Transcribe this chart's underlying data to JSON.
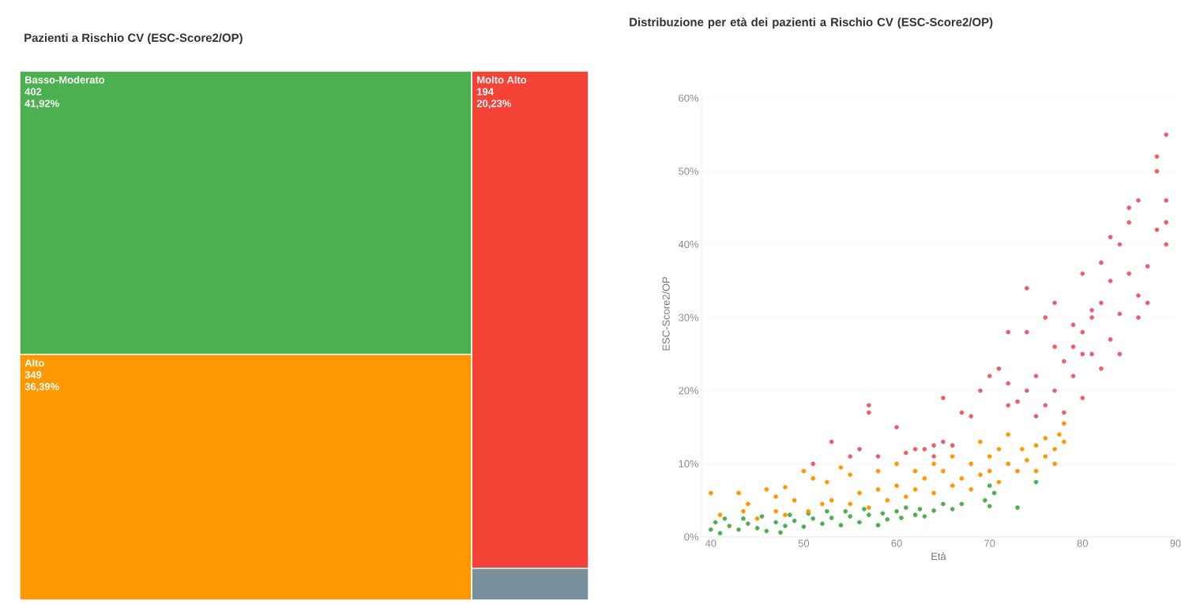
{
  "chart_data": [
    {
      "type": "other",
      "title": "Pazienti a Rischio CV (ESC-Score2/OP)",
      "categories": [
        "Basso-Moderato",
        "Alto",
        "Molto Alto",
        null
      ],
      "values": [
        402,
        349,
        194,
        null
      ],
      "colors": [
        "#4caf50",
        "#ff9800",
        "#f44336",
        "#78909c"
      ],
      "data_labels": true,
      "annotations": [
        {
          "text": "41,92%",
          "x": "Basso-Moderato"
        },
        {
          "text": "36,39%",
          "x": "Alto"
        },
        {
          "text": "20,23%",
          "x": "Molto Alto"
        }
      ]
    },
    {
      "type": "scatter",
      "title": "Distribuzione per età dei pazienti a Rischio CV (ESC-Score2/OP)",
      "xlabel": "Età",
      "ylabel": "ESC-Score2/OP",
      "xlim": [
        39,
        90
      ],
      "ylim": [
        0,
        61
      ],
      "xticks": [
        40,
        50,
        60,
        70,
        80,
        90
      ],
      "yticks": [
        {
          "value": 0,
          "label": "0%"
        },
        {
          "value": 10,
          "label": "10%"
        },
        {
          "value": 20,
          "label": "20%"
        },
        {
          "value": 30,
          "label": "30%"
        },
        {
          "value": 40,
          "label": "40%"
        },
        {
          "value": 50,
          "label": "50%"
        },
        {
          "value": 60,
          "label": "60%"
        }
      ],
      "grid": "y",
      "marker": "circle",
      "series": [
        {
          "color": "#4caf50",
          "x": [
            40,
            40.5,
            41,
            41.5,
            42,
            43,
            43.5,
            44,
            45,
            45.5,
            46,
            47,
            47.5,
            48,
            48.5,
            49,
            50,
            50.5,
            51,
            52,
            52.5,
            53,
            54,
            54.5,
            55,
            56,
            56.5,
            57,
            58,
            58.5,
            59,
            60,
            60.5,
            61,
            62,
            62.5,
            63,
            64,
            65,
            66,
            67,
            69.5,
            70,
            70.5,
            70,
            73,
            75
          ],
          "values": [
            1,
            2,
            0.5,
            2.5,
            1.5,
            1,
            2.5,
            1.8,
            1.2,
            2.8,
            0.8,
            2,
            0.6,
            1.5,
            3,
            2.2,
            1.4,
            3.2,
            2.5,
            1.8,
            3.5,
            2.6,
            1.6,
            3.5,
            2.8,
            2,
            3.8,
            3,
            1.6,
            3.2,
            2.4,
            3.5,
            2.6,
            4,
            3,
            3.8,
            2.8,
            3.6,
            4.5,
            3.8,
            4.5,
            5,
            7,
            6,
            4.2,
            4,
            7.5
          ]
        },
        {
          "color": "#ff9800",
          "x": [
            40,
            41,
            43,
            43.5,
            44,
            45,
            46,
            47,
            47,
            48,
            48,
            49,
            50,
            50.5,
            51,
            52,
            52.5,
            53,
            54,
            55,
            55,
            56,
            57,
            58,
            58,
            59,
            60,
            60,
            61,
            62,
            62,
            63,
            64,
            64,
            65,
            66,
            66,
            67,
            68,
            68,
            69,
            69,
            70,
            70,
            71,
            71,
            72,
            72,
            73,
            73.5,
            74,
            75,
            75,
            76,
            76,
            77,
            77,
            77.5,
            78,
            78
          ],
          "values": [
            6,
            3,
            6,
            3.5,
            4.5,
            2.5,
            6.5,
            3.5,
            5.5,
            6.8,
            3,
            5,
            9,
            3.5,
            8,
            4.5,
            7.5,
            5,
            9.5,
            4.5,
            8.5,
            6,
            4,
            6.5,
            9,
            5,
            7,
            10,
            5.5,
            9,
            6.5,
            8,
            6,
            10,
            9,
            7,
            11,
            8,
            10,
            6.5,
            13,
            8.5,
            9,
            11,
            12,
            7.5,
            10,
            14,
            9,
            12,
            10.5,
            12.5,
            9,
            11,
            13.5,
            10,
            12,
            14,
            15.5,
            13
          ]
        },
        {
          "color": "#e8606a",
          "x": [
            51,
            53,
            55,
            56,
            57,
            57,
            58,
            60,
            61,
            62,
            63,
            64,
            64,
            65,
            65,
            66,
            67,
            68,
            69,
            70,
            71,
            72,
            72,
            72,
            73,
            74,
            74,
            74,
            75,
            75,
            76,
            76,
            77,
            77,
            77,
            78,
            78,
            79,
            79,
            79,
            80,
            80,
            80,
            80,
            81,
            81,
            81,
            82,
            82,
            82,
            83,
            83,
            83,
            84,
            84,
            84,
            85,
            85,
            85,
            86,
            86,
            86,
            87,
            87,
            88,
            88,
            88,
            89,
            89,
            89,
            89
          ],
          "values": [
            10,
            13,
            11,
            12,
            18,
            17,
            11,
            15,
            11.5,
            12,
            12,
            11,
            12.5,
            13,
            19,
            12.5,
            17,
            16.5,
            20,
            22,
            23,
            18,
            21,
            28,
            18.5,
            20,
            28,
            34,
            16.5,
            22,
            18,
            30,
            26,
            32,
            20,
            24,
            17,
            26,
            22,
            29,
            25,
            36,
            19,
            28,
            31,
            30,
            25,
            37.5,
            23,
            32,
            35,
            27,
            41,
            40,
            30.5,
            25,
            36,
            45,
            43,
            46,
            30,
            33,
            37,
            32,
            52,
            50,
            42,
            55,
            46,
            40,
            43
          ]
        }
      ]
    }
  ]
}
